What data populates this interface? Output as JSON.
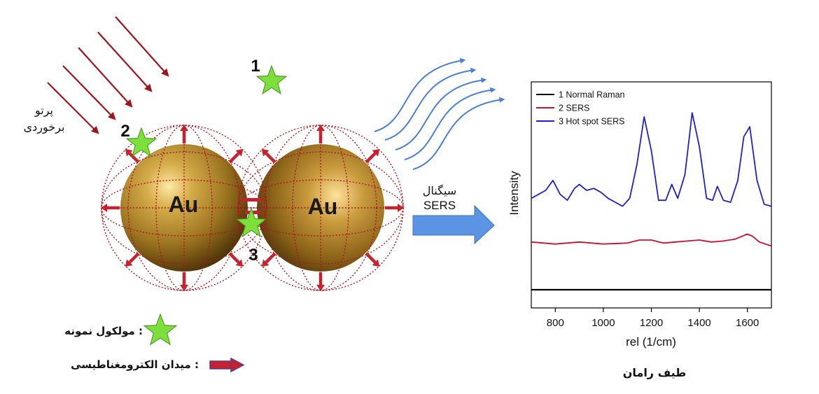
{
  "incident_light_label": [
    "پرتو",
    "برخوردی"
  ],
  "particle_label": "Au",
  "molecule_numbers": [
    "1",
    "2",
    "3"
  ],
  "signal_label": [
    "سیگنال",
    "SERS"
  ],
  "legend": {
    "molecule": ": مولکول نمونه",
    "field": ": میدان الکترومغناطیسی"
  },
  "spectrum_caption": "طیف رامان",
  "colors": {
    "gold": "#b8922e",
    "field_arrow": "#c8202c",
    "mesh": "#b0151f",
    "star": "#7ddf3a",
    "light_ray": "#a0141c",
    "signal": "#4a7fd8"
  },
  "chart_data": {
    "type": "line",
    "xlabel": "rel (1/cm)",
    "ylabel": "Intensity",
    "xlim": [
      700,
      1700
    ],
    "x_ticks": [
      800,
      1000,
      1200,
      1400,
      1600
    ],
    "legend_position": "top-left",
    "series": [
      {
        "name": "1 Normal Raman",
        "color": "#000000",
        "x": [
          700,
          1700
        ],
        "y": [
          0.0,
          0.0
        ]
      },
      {
        "name": "2 SERS",
        "color": "#c8102e",
        "x": [
          700,
          800,
          900,
          1000,
          1100,
          1150,
          1200,
          1250,
          1300,
          1350,
          1400,
          1450,
          1500,
          1550,
          1580,
          1600,
          1620,
          1650,
          1700
        ],
        "y": [
          0.24,
          0.23,
          0.24,
          0.23,
          0.235,
          0.25,
          0.25,
          0.235,
          0.24,
          0.245,
          0.25,
          0.24,
          0.245,
          0.255,
          0.27,
          0.28,
          0.27,
          0.24,
          0.22
        ]
      },
      {
        "name": "3 Hot spot SERS",
        "color": "#2020c8",
        "x": [
          700,
          730,
          760,
          790,
          820,
          850,
          880,
          900,
          930,
          960,
          990,
          1020,
          1050,
          1080,
          1110,
          1140,
          1170,
          1200,
          1230,
          1260,
          1285,
          1310,
          1340,
          1370,
          1400,
          1430,
          1455,
          1475,
          1500,
          1530,
          1560,
          1585,
          1610,
          1640,
          1670,
          1700
        ],
        "y": [
          0.46,
          0.48,
          0.5,
          0.55,
          0.48,
          0.45,
          0.51,
          0.53,
          0.5,
          0.51,
          0.49,
          0.46,
          0.44,
          0.42,
          0.46,
          0.63,
          0.87,
          0.7,
          0.45,
          0.45,
          0.53,
          0.46,
          0.58,
          0.89,
          0.72,
          0.46,
          0.45,
          0.52,
          0.45,
          0.44,
          0.55,
          0.77,
          0.82,
          0.55,
          0.43,
          0.42
        ]
      }
    ]
  }
}
